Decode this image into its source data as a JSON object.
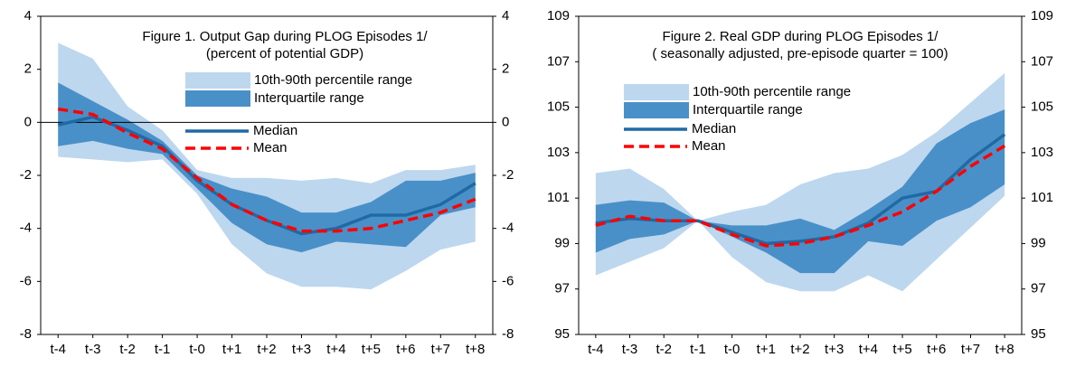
{
  "chart_data": [
    {
      "type": "line",
      "title": "Figure 1. Output Gap during PLOG Episodes 1/",
      "subtitle": "(percent of potential GDP)",
      "categories": [
        "t-4",
        "t-3",
        "t-2",
        "t-1",
        "t-0",
        "t+1",
        "t+2",
        "t+3",
        "t+4",
        "t+5",
        "t+6",
        "t+7",
        "t+8"
      ],
      "ylim": [
        -8,
        4
      ],
      "yticks": [
        -8,
        -6,
        -4,
        -2,
        0,
        2,
        4
      ],
      "bands": [
        {
          "name": "10th-90th percentile range",
          "color": "#bdd7ee",
          "low": [
            -1.3,
            -1.4,
            -1.5,
            -1.4,
            -2.7,
            -4.6,
            -5.7,
            -6.2,
            -6.2,
            -6.3,
            -5.6,
            -4.8,
            -4.5
          ],
          "high": [
            3.0,
            2.4,
            0.6,
            -0.3,
            -1.8,
            -2.1,
            -2.1,
            -2.2,
            -2.1,
            -2.3,
            -1.8,
            -1.8,
            -1.6
          ]
        },
        {
          "name": "Interquartile range",
          "color": "#4a90c8",
          "low": [
            -0.9,
            -0.7,
            -1.0,
            -1.2,
            -2.5,
            -3.8,
            -4.6,
            -4.9,
            -4.5,
            -4.6,
            -4.7,
            -3.5,
            -3.2
          ],
          "high": [
            1.5,
            0.8,
            0.1,
            -0.7,
            -2.0,
            -2.5,
            -2.8,
            -3.4,
            -3.4,
            -3.0,
            -2.2,
            -2.2,
            -1.9
          ]
        }
      ],
      "series": [
        {
          "name": "Median",
          "color": "#1f6aa5",
          "line_style": "solid",
          "values": [
            -0.1,
            0.2,
            -0.3,
            -0.9,
            -2.2,
            -3.1,
            -3.7,
            -4.2,
            -4.0,
            -3.5,
            -3.5,
            -3.1,
            -2.3
          ]
        },
        {
          "name": "Mean",
          "color": "#ff0000",
          "line_style": "dashed",
          "values": [
            0.5,
            0.3,
            -0.4,
            -1.0,
            -2.1,
            -3.1,
            -3.7,
            -4.1,
            -4.1,
            -4.0,
            -3.7,
            -3.4,
            -2.9
          ]
        }
      ]
    },
    {
      "type": "line",
      "title": "Figure 2. Real GDP during PLOG Episodes 1/",
      "subtitle": "( seasonally adjusted, pre-episode quarter = 100)",
      "categories": [
        "t-4",
        "t-3",
        "t-2",
        "t-1",
        "t-0",
        "t+1",
        "t+2",
        "t+3",
        "t+4",
        "t+5",
        "t+6",
        "t+7",
        "t+8"
      ],
      "ylim": [
        95,
        109
      ],
      "yticks": [
        95,
        97,
        99,
        101,
        103,
        105,
        107,
        109
      ],
      "bands": [
        {
          "name": "10th-90th percentile range",
          "color": "#bdd7ee",
          "low": [
            97.6,
            98.2,
            98.8,
            100.0,
            98.4,
            97.3,
            96.9,
            96.9,
            97.6,
            96.9,
            98.3,
            99.7,
            101.1
          ],
          "high": [
            102.1,
            102.3,
            101.4,
            100.0,
            100.4,
            100.7,
            101.6,
            102.1,
            102.3,
            102.9,
            103.9,
            105.2,
            106.5
          ]
        },
        {
          "name": "Interquartile range",
          "color": "#4a90c8",
          "low": [
            98.6,
            99.2,
            99.4,
            100.0,
            99.3,
            98.6,
            97.7,
            97.7,
            99.1,
            98.9,
            100.0,
            100.6,
            101.6
          ],
          "high": [
            100.7,
            100.9,
            100.8,
            100.0,
            99.8,
            99.8,
            100.1,
            99.6,
            100.5,
            101.5,
            103.4,
            104.3,
            104.9
          ]
        }
      ],
      "series": [
        {
          "name": "Median",
          "color": "#1f6aa5",
          "line_style": "solid",
          "values": [
            99.9,
            100.1,
            100.0,
            100.0,
            99.5,
            99.0,
            99.1,
            99.3,
            99.9,
            101.0,
            101.3,
            102.7,
            103.8
          ]
        },
        {
          "name": "Mean",
          "color": "#ff0000",
          "line_style": "dashed",
          "values": [
            99.8,
            100.2,
            100.0,
            100.0,
            99.4,
            98.9,
            99.0,
            99.3,
            99.8,
            100.4,
            101.3,
            102.4,
            103.3
          ]
        }
      ]
    }
  ]
}
